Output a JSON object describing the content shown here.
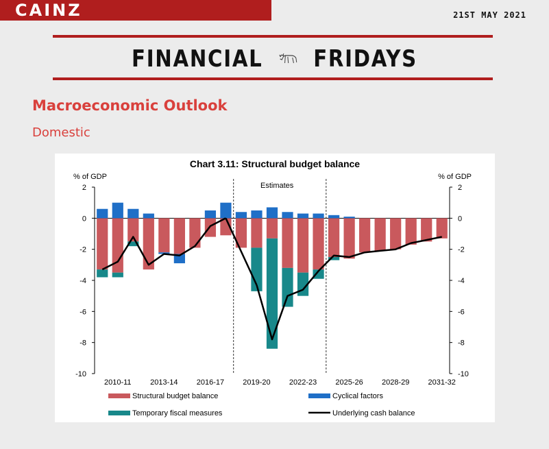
{
  "header": {
    "brand": "CAINZ",
    "date": "21ST MAY 2021",
    "title_left": "FINANCIAL",
    "title_right": "FRIDAYS",
    "logo_icon": "bull-icon",
    "accent_color": "#b01e1e"
  },
  "section": {
    "title": "Macroeconomic Outlook",
    "subtitle": "Domestic",
    "color": "#d9403c"
  },
  "chart_data": {
    "type": "bar",
    "title": "Chart 3.11: Structural budget balance",
    "ylabel_left": "% of GDP",
    "ylabel_right": "% of GDP",
    "ylim": [
      -10,
      2
    ],
    "yticks": [
      2,
      0,
      -2,
      -4,
      -6,
      -8,
      -10
    ],
    "estimates_label": "Estimates",
    "dividers_after_index": [
      8,
      14
    ],
    "xticks": [
      "2010-11",
      "2013-14",
      "2016-17",
      "2019-20",
      "2022-23",
      "2025-26",
      "2028-29",
      "2031-32"
    ],
    "categories": [
      "2009-10",
      "2010-11",
      "2011-12",
      "2012-13",
      "2013-14",
      "2014-15",
      "2015-16",
      "2016-17",
      "2017-18",
      "2018-19",
      "2019-20",
      "2020-21",
      "2021-22",
      "2022-23",
      "2023-24",
      "2024-25",
      "2025-26",
      "2026-27",
      "2027-28",
      "2028-29",
      "2029-30",
      "2030-31",
      "2031-32"
    ],
    "series": [
      {
        "name": "Structural budget balance",
        "kind": "bar",
        "color": "#c9595d",
        "values": [
          -3.3,
          -3.5,
          -1.5,
          -3.3,
          -2.2,
          -2.3,
          -1.9,
          -1.2,
          -1.1,
          -1.9,
          -1.9,
          -1.3,
          -3.2,
          -3.5,
          -3.3,
          -2.5,
          -2.6,
          -2.2,
          -2.1,
          -2.0,
          -1.7,
          -1.5,
          -1.3
        ]
      },
      {
        "name": "Cyclical factors",
        "kind": "bar",
        "color": "#1f6fc7",
        "values": [
          0.6,
          1.0,
          0.6,
          0.3,
          -0.1,
          -0.6,
          0.0,
          0.5,
          1.0,
          0.4,
          0.5,
          0.7,
          0.4,
          0.3,
          0.3,
          0.2,
          0.1,
          0.0,
          0.0,
          0.0,
          0.0,
          0.0,
          0.0
        ]
      },
      {
        "name": "Temporary fiscal measures",
        "kind": "bar",
        "color": "#18888a",
        "values": [
          -0.5,
          -0.3,
          -0.3,
          0.0,
          0.0,
          0.0,
          0.0,
          0.0,
          0.0,
          0.0,
          -2.8,
          -7.1,
          -2.5,
          -1.5,
          -0.6,
          -0.2,
          0.0,
          0.0,
          0.0,
          0.0,
          0.0,
          0.0,
          0.0
        ]
      },
      {
        "name": "Underlying cash balance",
        "kind": "line",
        "color": "#000000",
        "values": [
          -3.3,
          -2.8,
          -1.2,
          -3.0,
          -2.3,
          -2.4,
          -1.8,
          -0.5,
          0.0,
          null,
          -4.3,
          -7.8,
          -5.0,
          -4.6,
          -3.4,
          -2.4,
          -2.5,
          -2.2,
          -2.1,
          -2.0,
          -1.6,
          -1.4,
          -1.2
        ]
      }
    ]
  }
}
